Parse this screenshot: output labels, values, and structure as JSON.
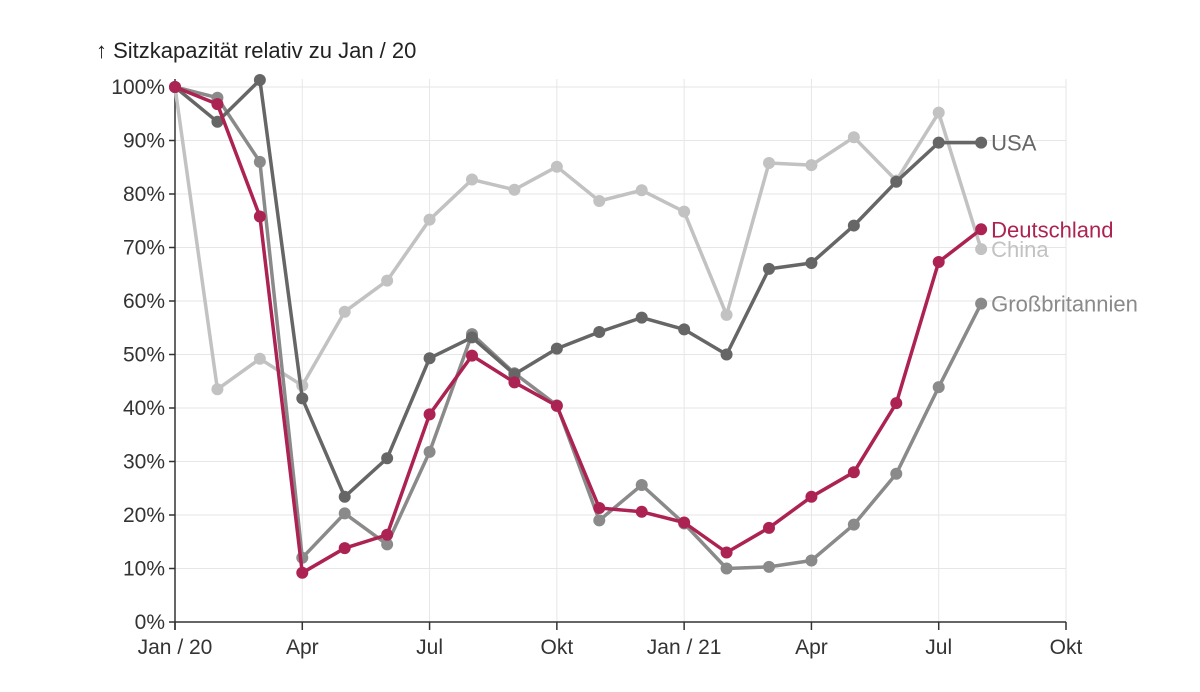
{
  "chart_data": {
    "type": "line",
    "title": "↑ Sitzkapazität relativ zu Jan / 20",
    "xlabel": "",
    "ylabel": "",
    "x_ticks": [
      "Jan / 20",
      "Apr",
      "Jul",
      "Okt",
      "Jan / 21",
      "Apr",
      "Jul",
      "Okt"
    ],
    "y_ticks": [
      "0%",
      "10%",
      "20%",
      "30%",
      "40%",
      "50%",
      "60%",
      "70%",
      "80%",
      "90%",
      "100%"
    ],
    "ylim": [
      0,
      100
    ],
    "xlim": [
      "2020-01",
      "2021-10"
    ],
    "x": [
      "2020-01",
      "2020-02",
      "2020-03",
      "2020-04",
      "2020-05",
      "2020-06",
      "2020-07",
      "2020-08",
      "2020-09",
      "2020-10",
      "2020-11",
      "2020-12",
      "2021-01",
      "2021-02",
      "2021-03",
      "2021-04",
      "2021-05",
      "2021-06",
      "2021-07",
      "2021-08"
    ],
    "grid": true,
    "series": [
      {
        "name": "China",
        "color": "#c2c2c2",
        "values": [
          100,
          43.5,
          49.2,
          44.2,
          58,
          63.8,
          75.2,
          82.7,
          80.8,
          85.1,
          78.7,
          80.7,
          76.7,
          57.4,
          85.8,
          85.4,
          90.6,
          82.5,
          95.2,
          69.7
        ]
      },
      {
        "name": "Großbritannien",
        "color": "#8a8a8a",
        "values": [
          100,
          98,
          86,
          12,
          20.3,
          14.5,
          31.8,
          53.8,
          46.5,
          40.5,
          19,
          25.6,
          18.4,
          10,
          10.3,
          11.5,
          18.2,
          27.7,
          43.9,
          59.5
        ]
      },
      {
        "name": "USA",
        "color": "#666666",
        "values": [
          100,
          93.5,
          101.3,
          41.8,
          23.4,
          30.6,
          49.3,
          53.2,
          46.3,
          51.1,
          54.2,
          56.9,
          54.7,
          50,
          66,
          67.1,
          74.1,
          82.3,
          89.6,
          89.6
        ]
      },
      {
        "name": "Deutschland",
        "color": "#ac2353",
        "values": [
          100,
          96.8,
          75.8,
          9.2,
          13.8,
          16.3,
          38.8,
          49.8,
          44.8,
          40.4,
          21.3,
          20.6,
          18.6,
          13,
          17.6,
          23.4,
          28,
          40.9,
          67.3,
          73.4
        ]
      }
    ]
  }
}
